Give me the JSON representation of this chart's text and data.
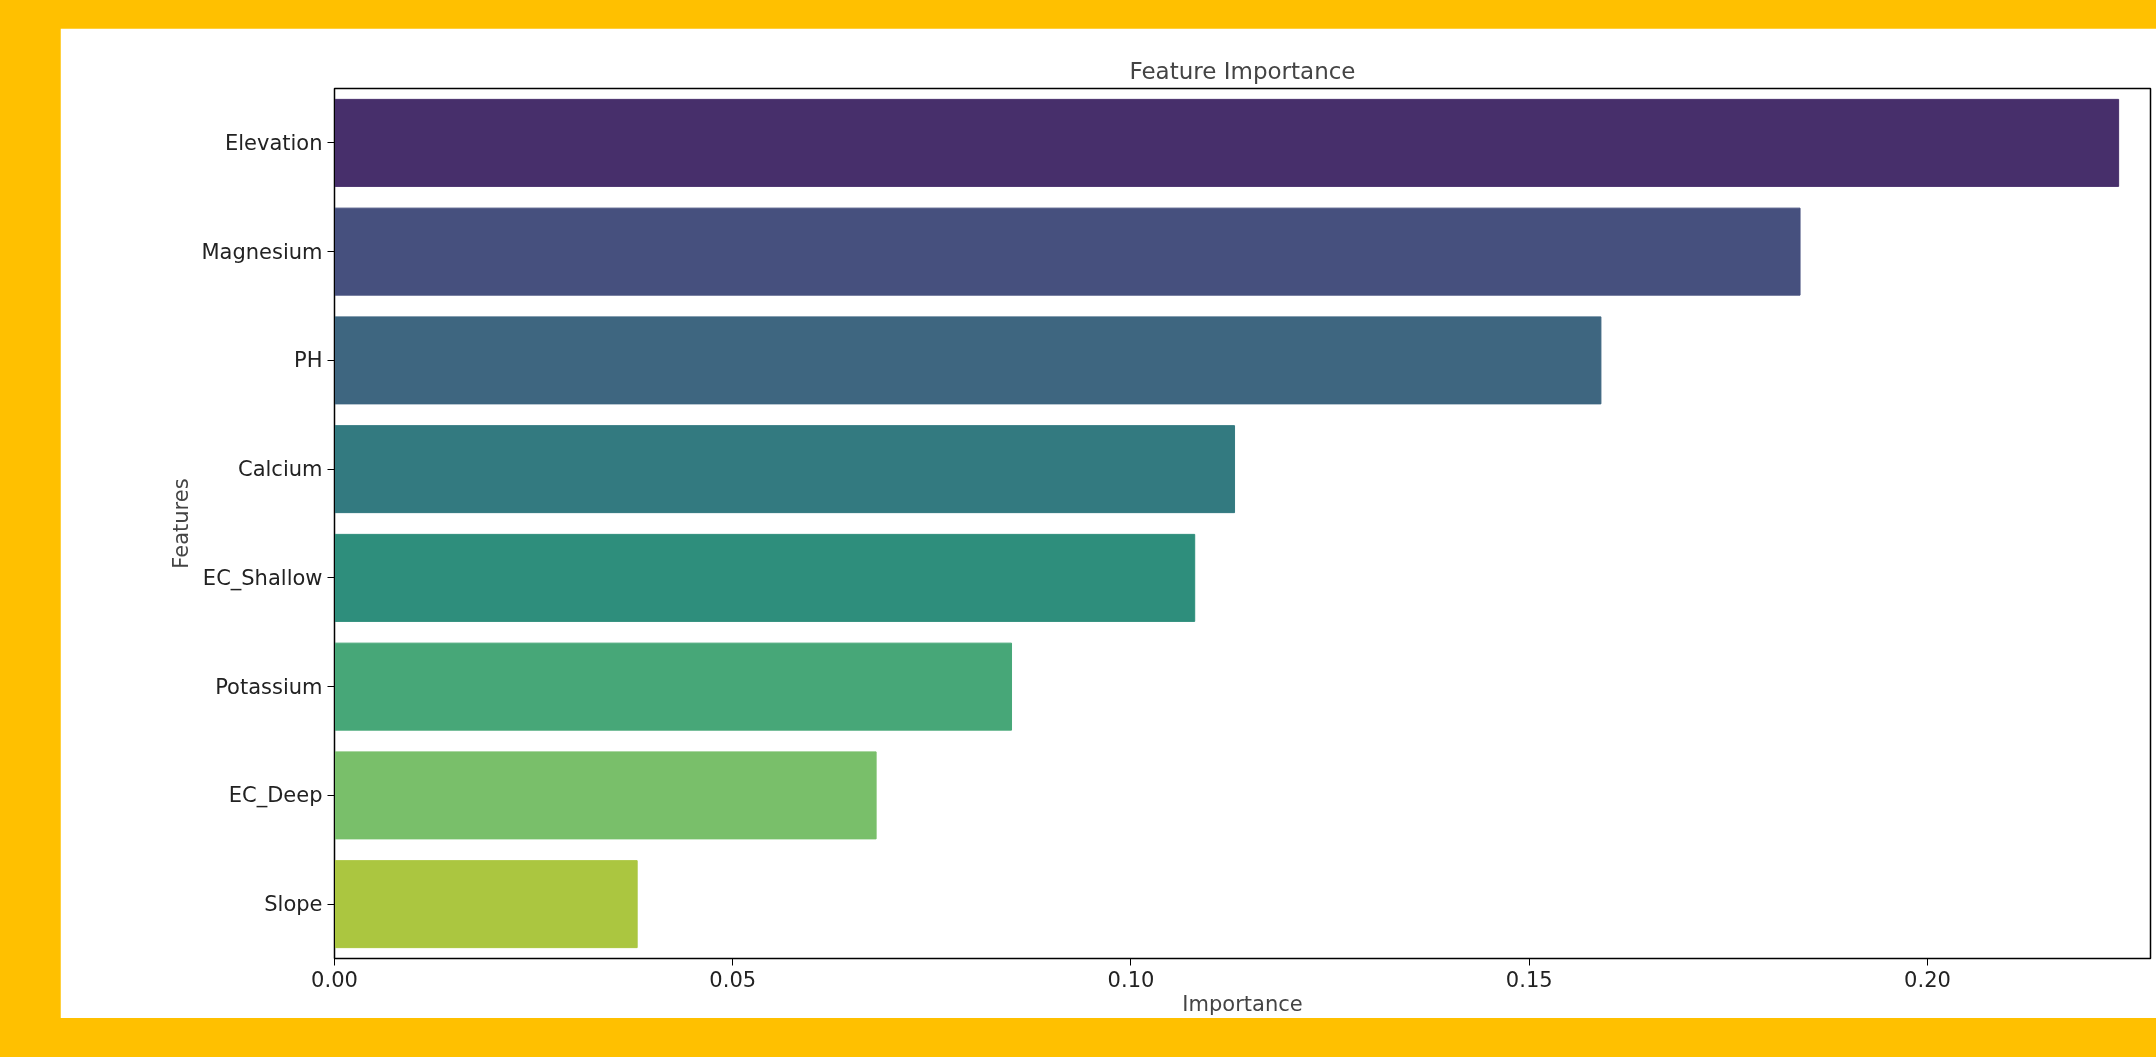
{
  "chart_data": {
    "type": "bar",
    "orientation": "horizontal",
    "title": "Feature Importance",
    "xlabel": "Importance",
    "ylabel": "Features",
    "categories": [
      "Elevation",
      "Magnesium",
      "PH",
      "Calcium",
      "EC_Shallow",
      "Potassium",
      "EC_Deep",
      "Slope"
    ],
    "values": [
      0.224,
      0.184,
      0.159,
      0.113,
      0.108,
      0.085,
      0.068,
      0.038
    ],
    "colors": [
      "#472f6b",
      "#46507e",
      "#3e6680",
      "#337a80",
      "#2e8e7c",
      "#47a778",
      "#79bf6a",
      "#abc640"
    ],
    "xlim": [
      0,
      0.228
    ],
    "xticks": [
      {
        "value": 0,
        "label": "0.00"
      },
      0.05,
      {
        "value": 0.1,
        "label": "0.10"
      },
      0.15,
      {
        "value": 0.2,
        "label": "0.20"
      }
    ],
    "grid": false
  }
}
